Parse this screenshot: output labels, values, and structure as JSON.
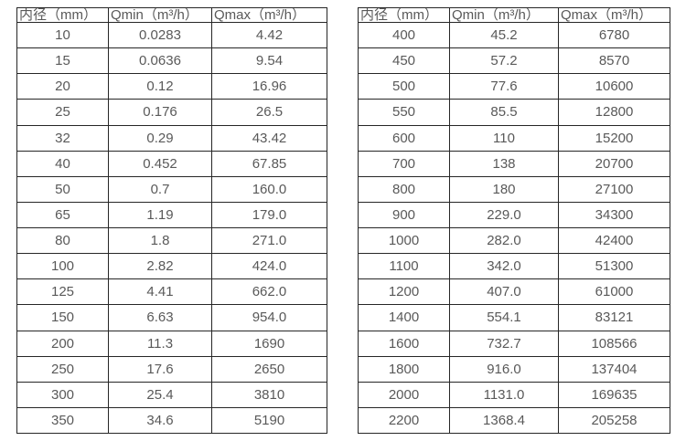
{
  "page": {
    "background_color": "#ffffff",
    "text_color": "#595959",
    "border_color": "#262626"
  },
  "tables": [
    {
      "name": "small-diameter-flow-table",
      "headers": [
        "内径（mm）",
        "Qmin（m³/h）",
        "Qmax（m³/h）"
      ],
      "rows": [
        [
          "10",
          "0.0283",
          "4.42"
        ],
        [
          "15",
          "0.0636",
          "9.54"
        ],
        [
          "20",
          "0.12",
          "16.96"
        ],
        [
          "25",
          "0.176",
          "26.5"
        ],
        [
          "32",
          "0.29",
          "43.42"
        ],
        [
          "40",
          "0.452",
          "67.85"
        ],
        [
          "50",
          "0.7",
          "160.0"
        ],
        [
          "65",
          "1.19",
          "179.0"
        ],
        [
          "80",
          "1.8",
          "271.0"
        ],
        [
          "100",
          "2.82",
          "424.0"
        ],
        [
          "125",
          "4.41",
          "662.0"
        ],
        [
          "150",
          "6.63",
          "954.0"
        ],
        [
          "200",
          "11.3",
          "1690"
        ],
        [
          "250",
          "17.6",
          "2650"
        ],
        [
          "300",
          "25.4",
          "3810"
        ],
        [
          "350",
          "34.6",
          "5190"
        ]
      ]
    },
    {
      "name": "large-diameter-flow-table",
      "headers": [
        "内径（mm）",
        "Qmin（m³/h）",
        "Qmax（m³/h）"
      ],
      "rows": [
        [
          "400",
          "45.2",
          "6780"
        ],
        [
          "450",
          "57.2",
          "8570"
        ],
        [
          "500",
          "77.6",
          "10600"
        ],
        [
          "550",
          "85.5",
          "12800"
        ],
        [
          "600",
          "110",
          "15200"
        ],
        [
          "700",
          "138",
          "20700"
        ],
        [
          "800",
          "180",
          "27100"
        ],
        [
          "900",
          "229.0",
          "34300"
        ],
        [
          "1000",
          "282.0",
          "42400"
        ],
        [
          "1100",
          "342.0",
          "51300"
        ],
        [
          "1200",
          "407.0",
          "61000"
        ],
        [
          "1400",
          "554.1",
          "83121"
        ],
        [
          "1600",
          "732.7",
          "108566"
        ],
        [
          "1800",
          "916.0",
          "137404"
        ],
        [
          "2000",
          "1131.0",
          "169635"
        ],
        [
          "2200",
          "1368.4",
          "205258"
        ]
      ]
    }
  ]
}
